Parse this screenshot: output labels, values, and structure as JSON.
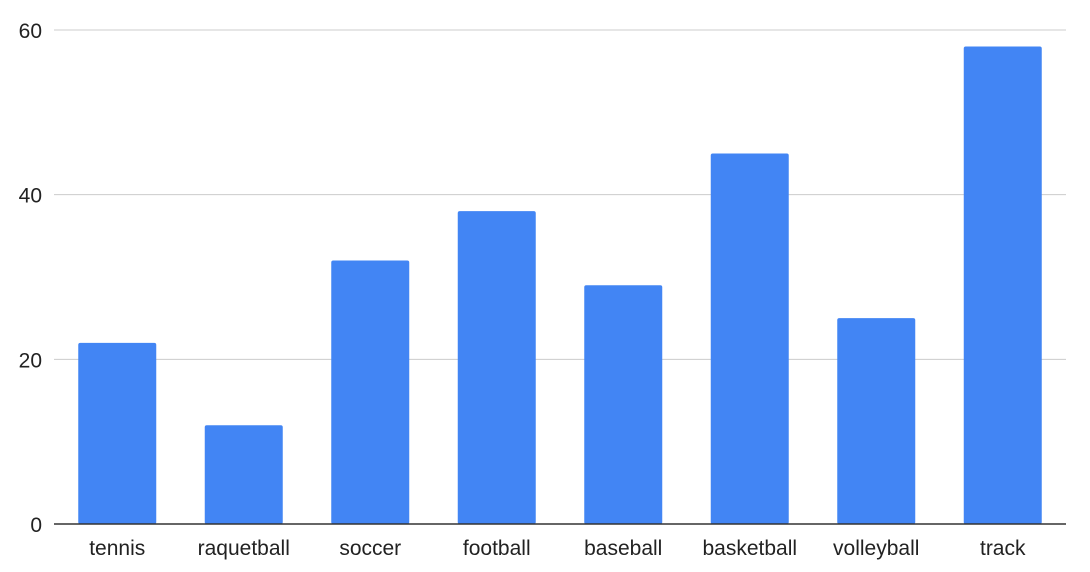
{
  "chart_data": {
    "type": "bar",
    "categories": [
      "tennis",
      "raquetball",
      "soccer",
      "football",
      "baseball",
      "basketball",
      "volleyball",
      "track"
    ],
    "values": [
      22,
      12,
      32,
      38,
      29,
      45,
      25,
      58
    ],
    "title": "",
    "xlabel": "",
    "ylabel": "",
    "ylim": [
      0,
      60
    ],
    "yticks": [
      0,
      20,
      40,
      60
    ],
    "grid": true,
    "legend": "none",
    "colors": {
      "bar": "#4285f4",
      "grid": "#cccccc",
      "axis": "#333333"
    }
  }
}
